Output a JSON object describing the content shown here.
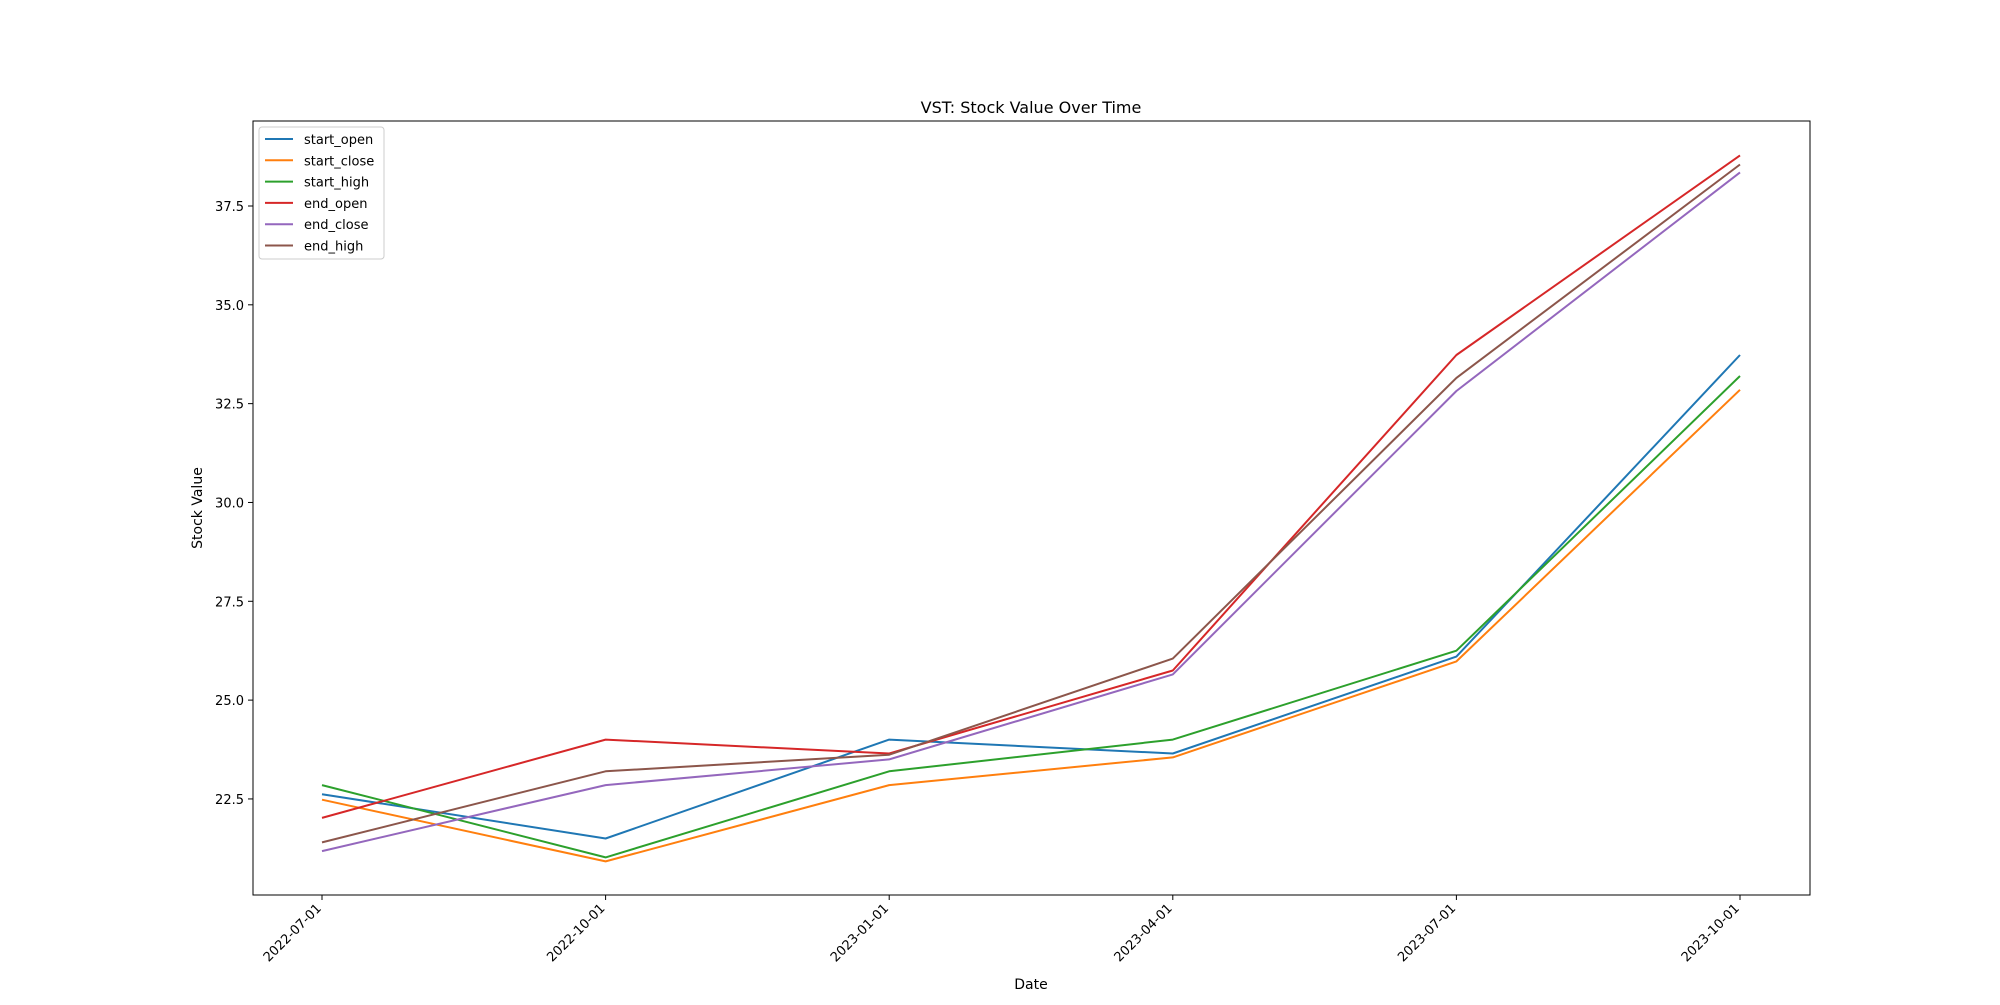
{
  "chart_data": {
    "type": "line",
    "title": "VST: Stock Value Over Time",
    "xlabel": "Date",
    "ylabel": "Stock Value",
    "x": [
      "2022-07-01",
      "2022-10-01",
      "2023-01-01",
      "2023-04-01",
      "2023-07-01",
      "2023-10-01"
    ],
    "y_ticks": [
      "22.5",
      "25.0",
      "27.5",
      "30.0",
      "32.5",
      "35.0",
      "37.5"
    ],
    "ylim": [
      20.07,
      39.65
    ],
    "grid": false,
    "legend_position": "top-left",
    "series": [
      {
        "name": "start_open",
        "color": "#1f77b4",
        "values": [
          22.62,
          21.5,
          24.0,
          23.65,
          26.1,
          33.73
        ]
      },
      {
        "name": "start_close",
        "color": "#ff7f0e",
        "values": [
          22.48,
          20.92,
          22.85,
          23.55,
          25.98,
          32.85
        ]
      },
      {
        "name": "start_high",
        "color": "#2ca02c",
        "values": [
          22.85,
          21.02,
          23.2,
          24.0,
          26.25,
          33.2
        ]
      },
      {
        "name": "end_open",
        "color": "#d62728",
        "values": [
          22.02,
          24.0,
          23.65,
          25.75,
          33.73,
          38.78
        ]
      },
      {
        "name": "end_close",
        "color": "#9467bd",
        "values": [
          21.18,
          22.85,
          23.5,
          25.65,
          32.82,
          38.35
        ]
      },
      {
        "name": "end_high",
        "color": "#8c564b",
        "values": [
          21.4,
          23.2,
          23.62,
          26.05,
          33.15,
          38.55
        ]
      }
    ]
  }
}
